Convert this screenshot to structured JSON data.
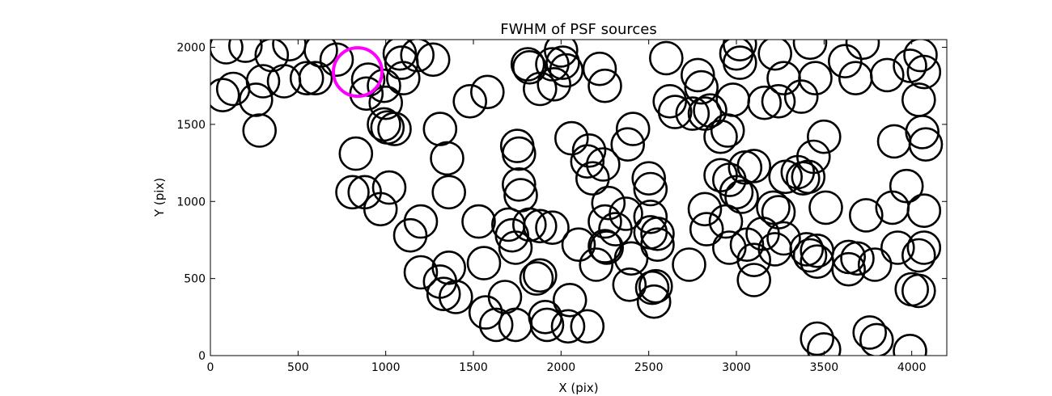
{
  "chart_data": {
    "type": "scatter",
    "title": "FWHM of PSF sources",
    "xlabel": "X (pix)",
    "ylabel": "Y (pix)",
    "xlim": [
      0,
      4200
    ],
    "ylim": [
      0,
      2050
    ],
    "xticks": [
      0,
      500,
      1000,
      1500,
      2000,
      2500,
      3000,
      3500,
      4000
    ],
    "yticks": [
      0,
      500,
      1000,
      1500,
      2000
    ],
    "marker": "open-circle",
    "grid": false,
    "colors": {
      "default": "#000000",
      "highlight": "#ff00ff"
    },
    "highlight": {
      "x": 840,
      "y": 1840
    },
    "points": [
      {
        "x": 90,
        "y": 2000
      },
      {
        "x": 200,
        "y": 2010
      },
      {
        "x": 350,
        "y": 1950
      },
      {
        "x": 450,
        "y": 2020
      },
      {
        "x": 630,
        "y": 1980
      },
      {
        "x": 720,
        "y": 1920
      },
      {
        "x": 70,
        "y": 1690
      },
      {
        "x": 130,
        "y": 1730
      },
      {
        "x": 260,
        "y": 1660
      },
      {
        "x": 300,
        "y": 1780
      },
      {
        "x": 420,
        "y": 1780
      },
      {
        "x": 550,
        "y": 1800
      },
      {
        "x": 600,
        "y": 1800
      },
      {
        "x": 280,
        "y": 1460
      },
      {
        "x": 900,
        "y": 1790
      },
      {
        "x": 890,
        "y": 1700
      },
      {
        "x": 990,
        "y": 1750
      },
      {
        "x": 1000,
        "y": 1640
      },
      {
        "x": 1080,
        "y": 1960
      },
      {
        "x": 1090,
        "y": 1900
      },
      {
        "x": 1100,
        "y": 1800
      },
      {
        "x": 1180,
        "y": 1950
      },
      {
        "x": 1270,
        "y": 1920
      },
      {
        "x": 990,
        "y": 1500
      },
      {
        "x": 1010,
        "y": 1480
      },
      {
        "x": 1050,
        "y": 1470
      },
      {
        "x": 830,
        "y": 1310
      },
      {
        "x": 810,
        "y": 1060
      },
      {
        "x": 880,
        "y": 1060
      },
      {
        "x": 1020,
        "y": 1090
      },
      {
        "x": 970,
        "y": 950
      },
      {
        "x": 1140,
        "y": 780
      },
      {
        "x": 1200,
        "y": 870
      },
      {
        "x": 1200,
        "y": 540
      },
      {
        "x": 1310,
        "y": 1470
      },
      {
        "x": 1350,
        "y": 1280
      },
      {
        "x": 1360,
        "y": 1060
      },
      {
        "x": 1360,
        "y": 570
      },
      {
        "x": 1310,
        "y": 480
      },
      {
        "x": 1330,
        "y": 400
      },
      {
        "x": 1400,
        "y": 380
      },
      {
        "x": 1480,
        "y": 1650
      },
      {
        "x": 1580,
        "y": 1710
      },
      {
        "x": 1530,
        "y": 870
      },
      {
        "x": 1560,
        "y": 600
      },
      {
        "x": 1570,
        "y": 280
      },
      {
        "x": 1630,
        "y": 200
      },
      {
        "x": 1680,
        "y": 380
      },
      {
        "x": 1740,
        "y": 200
      },
      {
        "x": 1700,
        "y": 850
      },
      {
        "x": 1720,
        "y": 780
      },
      {
        "x": 1740,
        "y": 700
      },
      {
        "x": 1750,
        "y": 1360
      },
      {
        "x": 1760,
        "y": 1310
      },
      {
        "x": 1760,
        "y": 1110
      },
      {
        "x": 1770,
        "y": 1040
      },
      {
        "x": 1810,
        "y": 1890
      },
      {
        "x": 1820,
        "y": 1870
      },
      {
        "x": 1820,
        "y": 850
      },
      {
        "x": 1860,
        "y": 500
      },
      {
        "x": 1880,
        "y": 520
      },
      {
        "x": 1880,
        "y": 840
      },
      {
        "x": 1910,
        "y": 250
      },
      {
        "x": 1920,
        "y": 200
      },
      {
        "x": 1950,
        "y": 830
      },
      {
        "x": 1960,
        "y": 1760
      },
      {
        "x": 1880,
        "y": 1730
      },
      {
        "x": 1950,
        "y": 1890
      },
      {
        "x": 2000,
        "y": 1980
      },
      {
        "x": 2010,
        "y": 1900
      },
      {
        "x": 2030,
        "y": 1850
      },
      {
        "x": 2050,
        "y": 360
      },
      {
        "x": 2040,
        "y": 190
      },
      {
        "x": 2150,
        "y": 190
      },
      {
        "x": 2100,
        "y": 720
      },
      {
        "x": 2060,
        "y": 1410
      },
      {
        "x": 2160,
        "y": 1330
      },
      {
        "x": 2150,
        "y": 1260
      },
      {
        "x": 2180,
        "y": 1150
      },
      {
        "x": 2200,
        "y": 590
      },
      {
        "x": 2250,
        "y": 870
      },
      {
        "x": 2260,
        "y": 700
      },
      {
        "x": 2250,
        "y": 710
      },
      {
        "x": 2270,
        "y": 990
      },
      {
        "x": 2240,
        "y": 1240
      },
      {
        "x": 2220,
        "y": 1860
      },
      {
        "x": 2250,
        "y": 1750
      },
      {
        "x": 2310,
        "y": 820
      },
      {
        "x": 2370,
        "y": 920
      },
      {
        "x": 2380,
        "y": 1370
      },
      {
        "x": 2410,
        "y": 1470
      },
      {
        "x": 2400,
        "y": 630
      },
      {
        "x": 2390,
        "y": 460
      },
      {
        "x": 2500,
        "y": 1150
      },
      {
        "x": 2510,
        "y": 1080
      },
      {
        "x": 2510,
        "y": 900
      },
      {
        "x": 2510,
        "y": 800
      },
      {
        "x": 2550,
        "y": 790
      },
      {
        "x": 2550,
        "y": 720
      },
      {
        "x": 2520,
        "y": 440
      },
      {
        "x": 2540,
        "y": 450
      },
      {
        "x": 2530,
        "y": 350
      },
      {
        "x": 2600,
        "y": 1930
      },
      {
        "x": 2620,
        "y": 1650
      },
      {
        "x": 2650,
        "y": 1580
      },
      {
        "x": 2730,
        "y": 590
      },
      {
        "x": 2780,
        "y": 1820
      },
      {
        "x": 2800,
        "y": 1740
      },
      {
        "x": 2750,
        "y": 1570
      },
      {
        "x": 2820,
        "y": 1570
      },
      {
        "x": 2850,
        "y": 1590
      },
      {
        "x": 2820,
        "y": 950
      },
      {
        "x": 2830,
        "y": 820
      },
      {
        "x": 2910,
        "y": 1420
      },
      {
        "x": 2950,
        "y": 1460
      },
      {
        "x": 2910,
        "y": 1170
      },
      {
        "x": 2960,
        "y": 1140
      },
      {
        "x": 2940,
        "y": 870
      },
      {
        "x": 2960,
        "y": 700
      },
      {
        "x": 3000,
        "y": 1960
      },
      {
        "x": 3020,
        "y": 1900
      },
      {
        "x": 3020,
        "y": 2020
      },
      {
        "x": 2980,
        "y": 1660
      },
      {
        "x": 3000,
        "y": 1060
      },
      {
        "x": 3030,
        "y": 1030
      },
      {
        "x": 3050,
        "y": 1220
      },
      {
        "x": 3100,
        "y": 1230
      },
      {
        "x": 3060,
        "y": 720
      },
      {
        "x": 3100,
        "y": 620
      },
      {
        "x": 3100,
        "y": 490
      },
      {
        "x": 3150,
        "y": 790
      },
      {
        "x": 3160,
        "y": 1640
      },
      {
        "x": 3220,
        "y": 1960
      },
      {
        "x": 3240,
        "y": 1650
      },
      {
        "x": 3270,
        "y": 1800
      },
      {
        "x": 3210,
        "y": 960
      },
      {
        "x": 3240,
        "y": 930
      },
      {
        "x": 3220,
        "y": 690
      },
      {
        "x": 3270,
        "y": 760
      },
      {
        "x": 3280,
        "y": 1160
      },
      {
        "x": 3350,
        "y": 1190
      },
      {
        "x": 3370,
        "y": 1680
      },
      {
        "x": 3380,
        "y": 1150
      },
      {
        "x": 3410,
        "y": 1160
      },
      {
        "x": 3400,
        "y": 690
      },
      {
        "x": 3420,
        "y": 650
      },
      {
        "x": 3460,
        "y": 610
      },
      {
        "x": 3460,
        "y": 680
      },
      {
        "x": 3420,
        "y": 2030
      },
      {
        "x": 3450,
        "y": 1800
      },
      {
        "x": 3440,
        "y": 1290
      },
      {
        "x": 3500,
        "y": 1420
      },
      {
        "x": 3510,
        "y": 960
      },
      {
        "x": 3460,
        "y": 110
      },
      {
        "x": 3500,
        "y": 40
      },
      {
        "x": 3620,
        "y": 1910
      },
      {
        "x": 3720,
        "y": 2030
      },
      {
        "x": 3680,
        "y": 1800
      },
      {
        "x": 3640,
        "y": 640
      },
      {
        "x": 3640,
        "y": 560
      },
      {
        "x": 3690,
        "y": 630
      },
      {
        "x": 3740,
        "y": 910
      },
      {
        "x": 3790,
        "y": 590
      },
      {
        "x": 3760,
        "y": 150
      },
      {
        "x": 3800,
        "y": 100
      },
      {
        "x": 3860,
        "y": 1820
      },
      {
        "x": 3900,
        "y": 1390
      },
      {
        "x": 3890,
        "y": 960
      },
      {
        "x": 3920,
        "y": 700
      },
      {
        "x": 3970,
        "y": 1100
      },
      {
        "x": 3990,
        "y": 1880
      },
      {
        "x": 4000,
        "y": 430
      },
      {
        "x": 3990,
        "y": 30
      },
      {
        "x": 4050,
        "y": 1950
      },
      {
        "x": 4070,
        "y": 1840
      },
      {
        "x": 4040,
        "y": 1660
      },
      {
        "x": 4060,
        "y": 1450
      },
      {
        "x": 4080,
        "y": 1370
      },
      {
        "x": 4070,
        "y": 940
      },
      {
        "x": 4070,
        "y": 700
      },
      {
        "x": 4040,
        "y": 650
      },
      {
        "x": 4040,
        "y": 420
      }
    ]
  }
}
